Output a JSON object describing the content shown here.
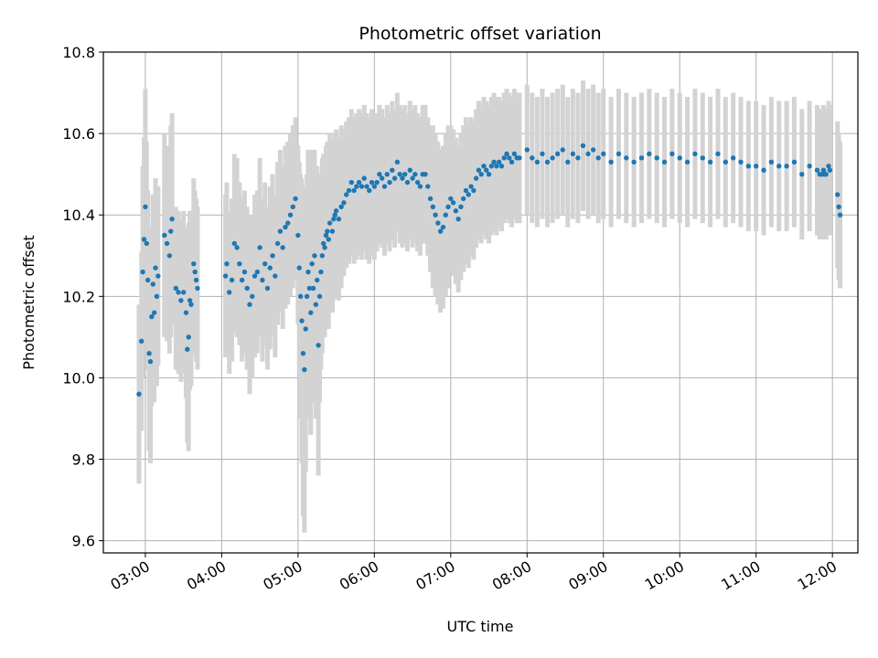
{
  "chart_data": {
    "type": "scatter",
    "title": "Photometric offset variation",
    "xlabel": "UTC time",
    "ylabel": "Photometric offset",
    "x_format": "HH:MM",
    "xlim": [
      "02:27",
      "12:20"
    ],
    "ylim": [
      9.57,
      10.8
    ],
    "x_ticks": [
      "03:00",
      "04:00",
      "05:00",
      "06:00",
      "07:00",
      "08:00",
      "09:00",
      "10:00",
      "11:00",
      "12:00"
    ],
    "y_ticks": [
      "9.6",
      "9.8",
      "10.0",
      "10.2",
      "10.4",
      "10.6",
      "10.8"
    ],
    "grid": true,
    "legend": "none",
    "colors": {
      "points": "#1f77b4",
      "error_bars": "#d3d3d3",
      "grid": "#b0b0b0",
      "axes": "#000000"
    },
    "series": [
      {
        "points": [
          [
            "02:55",
            9.96,
            0.22
          ],
          [
            "02:57",
            10.09,
            0.22
          ],
          [
            "02:58",
            10.26,
            0.26
          ],
          [
            "02:59",
            10.34,
            0.25
          ],
          [
            "03:00",
            10.42,
            0.29
          ],
          [
            "03:01",
            10.33,
            0.25
          ],
          [
            "03:02",
            10.24,
            0.22
          ],
          [
            "03:03",
            10.06,
            0.24
          ],
          [
            "03:04",
            10.04,
            0.25
          ],
          [
            "03:05",
            10.15,
            0.22
          ],
          [
            "03:06",
            10.23,
            0.22
          ],
          [
            "03:07",
            10.16,
            0.22
          ],
          [
            "03:08",
            10.27,
            0.22
          ],
          [
            "03:09",
            10.2,
            0.22
          ],
          [
            "03:10",
            10.25,
            0.22
          ],
          [
            "03:15",
            10.35,
            0.25
          ],
          [
            "03:17",
            10.33,
            0.24
          ],
          [
            "03:19",
            10.3,
            0.24
          ],
          [
            "03:20",
            10.36,
            0.26
          ],
          [
            "03:21",
            10.39,
            0.26
          ],
          [
            "03:24",
            10.22,
            0.2
          ],
          [
            "03:26",
            10.21,
            0.2
          ],
          [
            "03:28",
            10.19,
            0.2
          ],
          [
            "03:30",
            10.21,
            0.2
          ],
          [
            "03:32",
            10.16,
            0.21
          ],
          [
            "03:33",
            10.07,
            0.23
          ],
          [
            "03:34",
            10.1,
            0.28
          ],
          [
            "03:35",
            10.19,
            0.22
          ],
          [
            "03:36",
            10.18,
            0.2
          ],
          [
            "03:38",
            10.28,
            0.21
          ],
          [
            "03:39",
            10.26,
            0.2
          ],
          [
            "03:40",
            10.24,
            0.2
          ],
          [
            "03:41",
            10.22,
            0.2
          ],
          [
            "04:03",
            10.25,
            0.2
          ],
          [
            "04:04",
            10.28,
            0.2
          ],
          [
            "04:06",
            10.21,
            0.2
          ],
          [
            "04:08",
            10.24,
            0.2
          ],
          [
            "04:10",
            10.33,
            0.22
          ],
          [
            "04:12",
            10.32,
            0.22
          ],
          [
            "04:14",
            10.28,
            0.2
          ],
          [
            "04:16",
            10.24,
            0.2
          ],
          [
            "04:18",
            10.26,
            0.2
          ],
          [
            "04:20",
            10.22,
            0.2
          ],
          [
            "04:22",
            10.18,
            0.22
          ],
          [
            "04:24",
            10.2,
            0.2
          ],
          [
            "04:26",
            10.25,
            0.2
          ],
          [
            "04:28",
            10.26,
            0.2
          ],
          [
            "04:30",
            10.32,
            0.22
          ],
          [
            "04:32",
            10.24,
            0.2
          ],
          [
            "04:34",
            10.28,
            0.2
          ],
          [
            "04:36",
            10.22,
            0.2
          ],
          [
            "04:38",
            10.27,
            0.2
          ],
          [
            "04:40",
            10.3,
            0.2
          ],
          [
            "04:42",
            10.25,
            0.2
          ],
          [
            "04:44",
            10.33,
            0.2
          ],
          [
            "04:46",
            10.36,
            0.2
          ],
          [
            "04:48",
            10.32,
            0.2
          ],
          [
            "04:50",
            10.37,
            0.2
          ],
          [
            "04:52",
            10.38,
            0.2
          ],
          [
            "04:54",
            10.4,
            0.2
          ],
          [
            "04:56",
            10.42,
            0.2
          ],
          [
            "04:58",
            10.44,
            0.2
          ],
          [
            "05:00",
            10.35,
            0.22
          ],
          [
            "05:01",
            10.27,
            0.26
          ],
          [
            "05:02",
            10.2,
            0.3
          ],
          [
            "05:03",
            10.14,
            0.35
          ],
          [
            "05:04",
            10.06,
            0.4
          ],
          [
            "05:05",
            10.02,
            0.4
          ],
          [
            "05:06",
            10.12,
            0.35
          ],
          [
            "05:07",
            10.2,
            0.3
          ],
          [
            "05:08",
            10.26,
            0.3
          ],
          [
            "05:09",
            10.22,
            0.3
          ],
          [
            "05:10",
            10.16,
            0.3
          ],
          [
            "05:11",
            10.28,
            0.28
          ],
          [
            "05:12",
            10.22,
            0.28
          ],
          [
            "05:13",
            10.3,
            0.26
          ],
          [
            "05:14",
            10.18,
            0.28
          ],
          [
            "05:15",
            10.24,
            0.28
          ],
          [
            "05:16",
            10.08,
            0.32
          ],
          [
            "05:17",
            10.2,
            0.26
          ],
          [
            "05:18",
            10.26,
            0.24
          ],
          [
            "05:19",
            10.3,
            0.24
          ],
          [
            "05:20",
            10.33,
            0.22
          ],
          [
            "05:21",
            10.32,
            0.22
          ],
          [
            "05:22",
            10.35,
            0.22
          ],
          [
            "05:23",
            10.36,
            0.22
          ],
          [
            "05:24",
            10.34,
            0.22
          ],
          [
            "05:25",
            10.38,
            0.22
          ],
          [
            "05:27",
            10.36,
            0.2
          ],
          [
            "05:28",
            10.39,
            0.2
          ],
          [
            "05:29",
            10.4,
            0.2
          ],
          [
            "05:30",
            10.41,
            0.2
          ],
          [
            "05:32",
            10.39,
            0.2
          ],
          [
            "05:34",
            10.42,
            0.2
          ],
          [
            "05:36",
            10.43,
            0.18
          ],
          [
            "05:38",
            10.45,
            0.18
          ],
          [
            "05:40",
            10.46,
            0.18
          ],
          [
            "05:42",
            10.48,
            0.18
          ],
          [
            "05:44",
            10.46,
            0.18
          ],
          [
            "05:46",
            10.47,
            0.18
          ],
          [
            "05:48",
            10.48,
            0.18
          ],
          [
            "05:50",
            10.47,
            0.18
          ],
          [
            "05:52",
            10.49,
            0.18
          ],
          [
            "05:54",
            10.47,
            0.18
          ],
          [
            "05:56",
            10.46,
            0.18
          ],
          [
            "05:58",
            10.48,
            0.18
          ],
          [
            "06:00",
            10.47,
            0.18
          ],
          [
            "06:02",
            10.48,
            0.17
          ],
          [
            "06:04",
            10.5,
            0.17
          ],
          [
            "06:06",
            10.49,
            0.17
          ],
          [
            "06:08",
            10.47,
            0.17
          ],
          [
            "06:10",
            10.5,
            0.17
          ],
          [
            "06:12",
            10.48,
            0.17
          ],
          [
            "06:14",
            10.51,
            0.17
          ],
          [
            "06:16",
            10.49,
            0.17
          ],
          [
            "06:18",
            10.53,
            0.17
          ],
          [
            "06:20",
            10.5,
            0.17
          ],
          [
            "06:22",
            10.49,
            0.17
          ],
          [
            "06:24",
            10.5,
            0.17
          ],
          [
            "06:26",
            10.48,
            0.17
          ],
          [
            "06:28",
            10.51,
            0.17
          ],
          [
            "06:30",
            10.49,
            0.17
          ],
          [
            "06:32",
            10.5,
            0.17
          ],
          [
            "06:34",
            10.48,
            0.17
          ],
          [
            "06:36",
            10.47,
            0.17
          ],
          [
            "06:38",
            10.5,
            0.17
          ],
          [
            "06:40",
            10.5,
            0.17
          ],
          [
            "06:42",
            10.47,
            0.17
          ],
          [
            "06:44",
            10.44,
            0.18
          ],
          [
            "06:46",
            10.42,
            0.2
          ],
          [
            "06:48",
            10.4,
            0.2
          ],
          [
            "06:50",
            10.38,
            0.2
          ],
          [
            "06:52",
            10.36,
            0.2
          ],
          [
            "06:54",
            10.37,
            0.2
          ],
          [
            "06:56",
            10.4,
            0.2
          ],
          [
            "06:58",
            10.42,
            0.2
          ],
          [
            "07:00",
            10.44,
            0.18
          ],
          [
            "07:02",
            10.43,
            0.18
          ],
          [
            "07:04",
            10.41,
            0.18
          ],
          [
            "07:06",
            10.39,
            0.18
          ],
          [
            "07:08",
            10.42,
            0.18
          ],
          [
            "07:10",
            10.44,
            0.18
          ],
          [
            "07:12",
            10.46,
            0.18
          ],
          [
            "07:14",
            10.45,
            0.18
          ],
          [
            "07:16",
            10.47,
            0.17
          ],
          [
            "07:18",
            10.46,
            0.17
          ],
          [
            "07:20",
            10.49,
            0.17
          ],
          [
            "07:22",
            10.51,
            0.17
          ],
          [
            "07:24",
            10.5,
            0.17
          ],
          [
            "07:26",
            10.52,
            0.17
          ],
          [
            "07:28",
            10.51,
            0.17
          ],
          [
            "07:30",
            10.5,
            0.17
          ],
          [
            "07:32",
            10.52,
            0.17
          ],
          [
            "07:34",
            10.53,
            0.17
          ],
          [
            "07:36",
            10.52,
            0.17
          ],
          [
            "07:38",
            10.53,
            0.16
          ],
          [
            "07:40",
            10.52,
            0.16
          ],
          [
            "07:42",
            10.54,
            0.16
          ],
          [
            "07:44",
            10.55,
            0.16
          ],
          [
            "07:46",
            10.54,
            0.16
          ],
          [
            "07:48",
            10.53,
            0.16
          ],
          [
            "07:50",
            10.55,
            0.16
          ],
          [
            "07:52",
            10.54,
            0.16
          ],
          [
            "07:54",
            10.54,
            0.16
          ],
          [
            "08:00",
            10.56,
            0.16
          ],
          [
            "08:04",
            10.54,
            0.16
          ],
          [
            "08:08",
            10.53,
            0.16
          ],
          [
            "08:12",
            10.55,
            0.16
          ],
          [
            "08:16",
            10.53,
            0.16
          ],
          [
            "08:20",
            10.54,
            0.16
          ],
          [
            "08:24",
            10.55,
            0.16
          ],
          [
            "08:28",
            10.56,
            0.16
          ],
          [
            "08:32",
            10.53,
            0.16
          ],
          [
            "08:36",
            10.55,
            0.16
          ],
          [
            "08:40",
            10.54,
            0.16
          ],
          [
            "08:44",
            10.57,
            0.16
          ],
          [
            "08:48",
            10.55,
            0.16
          ],
          [
            "08:52",
            10.56,
            0.16
          ],
          [
            "08:56",
            10.54,
            0.16
          ],
          [
            "09:00",
            10.55,
            0.16
          ],
          [
            "09:06",
            10.53,
            0.16
          ],
          [
            "09:12",
            10.55,
            0.16
          ],
          [
            "09:18",
            10.54,
            0.16
          ],
          [
            "09:24",
            10.53,
            0.16
          ],
          [
            "09:30",
            10.54,
            0.16
          ],
          [
            "09:36",
            10.55,
            0.16
          ],
          [
            "09:42",
            10.54,
            0.16
          ],
          [
            "09:48",
            10.53,
            0.16
          ],
          [
            "09:54",
            10.55,
            0.16
          ],
          [
            "10:00",
            10.54,
            0.16
          ],
          [
            "10:06",
            10.53,
            0.16
          ],
          [
            "10:12",
            10.55,
            0.16
          ],
          [
            "10:18",
            10.54,
            0.16
          ],
          [
            "10:24",
            10.53,
            0.16
          ],
          [
            "10:30",
            10.55,
            0.16
          ],
          [
            "10:36",
            10.53,
            0.16
          ],
          [
            "10:42",
            10.54,
            0.16
          ],
          [
            "10:48",
            10.53,
            0.16
          ],
          [
            "10:54",
            10.52,
            0.16
          ],
          [
            "11:00",
            10.52,
            0.16
          ],
          [
            "11:06",
            10.51,
            0.16
          ],
          [
            "11:12",
            10.53,
            0.16
          ],
          [
            "11:18",
            10.52,
            0.16
          ],
          [
            "11:24",
            10.52,
            0.16
          ],
          [
            "11:30",
            10.53,
            0.16
          ],
          [
            "11:36",
            10.5,
            0.16
          ],
          [
            "11:42",
            10.52,
            0.16
          ],
          [
            "11:48",
            10.51,
            0.16
          ],
          [
            "11:50",
            10.5,
            0.16
          ],
          [
            "11:52",
            10.5,
            0.16
          ],
          [
            "11:53",
            10.51,
            0.16
          ],
          [
            "11:54",
            10.5,
            0.16
          ],
          [
            "11:55",
            10.5,
            0.16
          ],
          [
            "11:57",
            10.52,
            0.16
          ],
          [
            "11:58",
            10.51,
            0.16
          ],
          [
            "12:04",
            10.45,
            0.18
          ],
          [
            "12:05",
            10.42,
            0.18
          ],
          [
            "12:06",
            10.4,
            0.18
          ]
        ]
      }
    ]
  }
}
